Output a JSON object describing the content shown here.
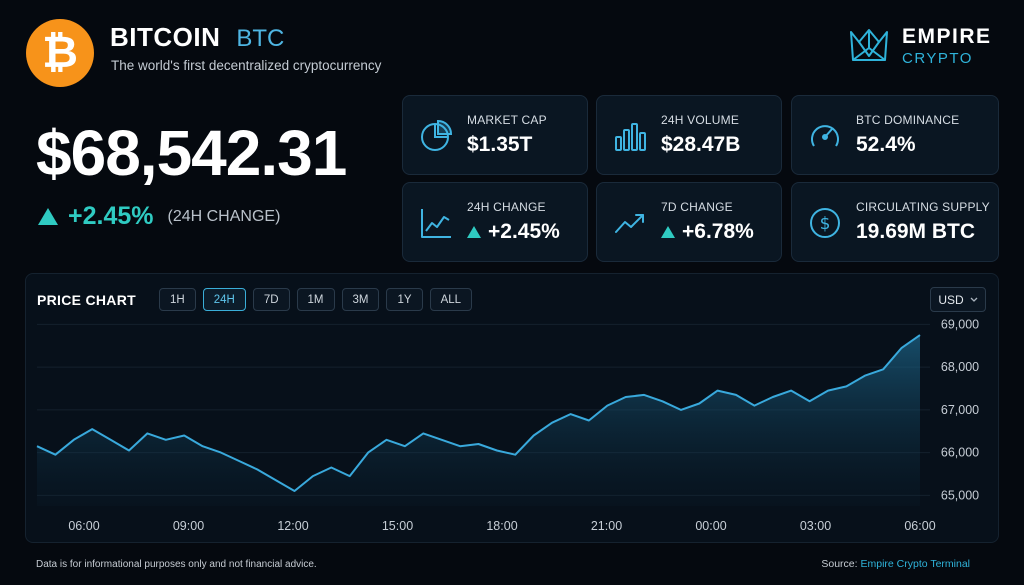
{
  "header": {
    "coin_name": "BITCOIN",
    "ticker": "BTC",
    "tagline": "The world's first decentralized cryptocurrency",
    "logo_glyph": "₿",
    "logo_color": "#f7931a"
  },
  "brand": {
    "name": "EMPIRE",
    "sub": "CRYPTO",
    "accent": "#2fb3da"
  },
  "price": {
    "value": "$68,542.31",
    "change": "+2.45%",
    "change_label": "(24H CHANGE)",
    "change_color": "#2fcbc2"
  },
  "stats": [
    {
      "label": "MARKET CAP",
      "value": "$1.35T",
      "icon": "pie-chart-icon",
      "trend": null
    },
    {
      "label": "24H VOLUME",
      "value": "$28.47B",
      "icon": "bar-chart-icon",
      "trend": null
    },
    {
      "label": "BTC DOMINANCE",
      "value": "52.4%",
      "icon": "gauge-icon",
      "trend": null
    },
    {
      "label": "24H CHANGE",
      "value": "+2.45%",
      "icon": "line-chart-icon",
      "trend": "up"
    },
    {
      "label": "7D CHANGE",
      "value": "+6.78%",
      "icon": "trend-up-icon",
      "trend": "up"
    },
    {
      "label": "CIRCULATING SUPPLY",
      "value": "19.69M BTC",
      "icon": "dollar-coin-icon",
      "trend": null
    }
  ],
  "chart_panel": {
    "title": "PRICE CHART",
    "timeframes": [
      "1H",
      "24H",
      "7D",
      "1M",
      "3M",
      "1Y",
      "ALL"
    ],
    "active_timeframe": "24H",
    "currency": "USD"
  },
  "chart_data": {
    "type": "area",
    "x_ticks": [
      "06:00",
      "09:00",
      "12:00",
      "15:00",
      "18:00",
      "21:00",
      "00:00",
      "03:00",
      "06:00"
    ],
    "ylim": [
      64750,
      69150
    ],
    "y_ticks": [
      65000,
      66000,
      67000,
      68000,
      69000
    ],
    "y_tick_labels": [
      "65,000",
      "66,000",
      "67,000",
      "68,000",
      "69,000"
    ],
    "series": [
      {
        "hours": [
          0,
          0.5,
          1,
          1.5,
          2,
          2.5,
          3,
          3.5,
          4,
          4.5,
          5,
          5.5,
          6,
          6.5,
          7,
          7.5,
          8,
          8.5,
          9,
          9.5,
          10,
          10.5,
          11,
          11.5,
          12,
          12.5,
          13,
          13.5,
          14,
          14.5,
          15,
          15.5,
          16,
          16.5,
          17,
          17.5,
          18,
          18.5,
          19,
          19.5,
          20,
          20.5,
          21,
          21.5,
          22,
          22.5,
          23,
          23.5,
          24
        ],
        "values": [
          66150,
          65950,
          66300,
          66550,
          66300,
          66050,
          66450,
          66300,
          66400,
          66150,
          66000,
          65800,
          65600,
          65350,
          65100,
          65450,
          65650,
          65450,
          66000,
          66300,
          66150,
          66450,
          66300,
          66150,
          66200,
          66050,
          65950,
          66400,
          66700,
          66900,
          66750,
          67100,
          67300,
          67350,
          67200,
          67000,
          67150,
          67450,
          67350,
          67100,
          67300,
          67450,
          67200,
          67450,
          67550,
          67800,
          67950,
          68450,
          68750
        ]
      }
    ],
    "line_color": "#39a9dc",
    "grid": true
  },
  "footer": {
    "disclaimer": "Data is for informational purposes only and not financial advice.",
    "source_label": "Source:",
    "source_name": "Empire Crypto Terminal"
  }
}
